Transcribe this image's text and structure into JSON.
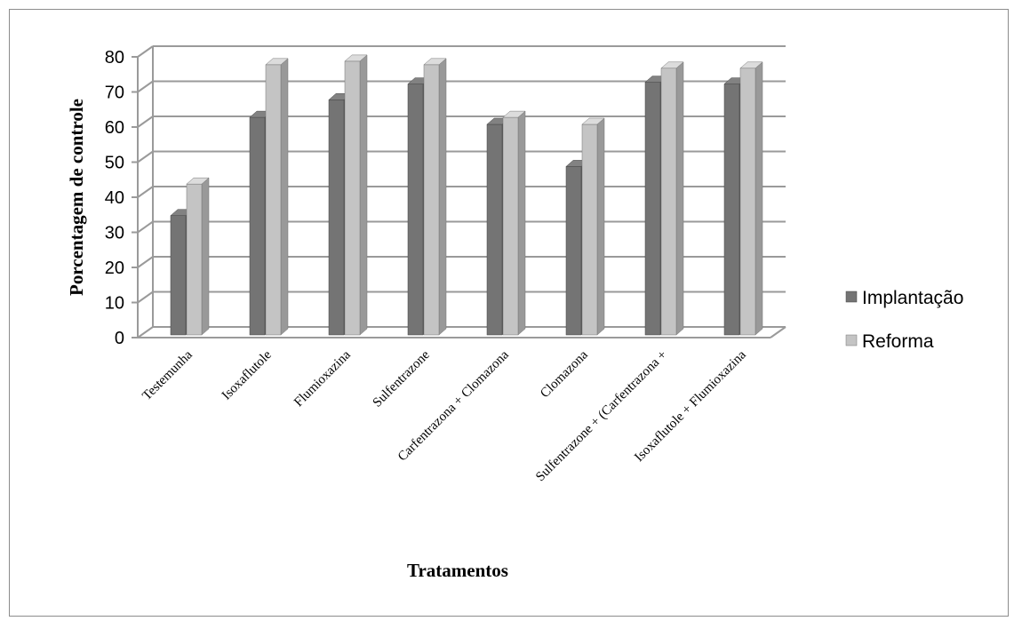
{
  "chart_data": {
    "type": "bar",
    "xlabel": "Tratamentos",
    "ylabel": "Porcentagem de controle",
    "ylim": [
      0,
      80
    ],
    "yticks": [
      0,
      10,
      20,
      30,
      40,
      50,
      60,
      70,
      80
    ],
    "grid": true,
    "legend_position": "right",
    "categories": [
      "Testemunha",
      "Isoxaflutole",
      "Flumioxazina",
      "Sulfentrazone",
      "Carfentrazona + Clomazona",
      "Clomazona",
      "Sulfentrazone + (Carfentrazona +",
      "Isoxaflutole + Flumioxazina"
    ],
    "series": [
      {
        "name": "Implantação",
        "values": [
          34,
          62,
          67,
          71.5,
          60,
          48,
          72,
          71.5
        ],
        "color": "#747474"
      },
      {
        "name": "Reforma",
        "values": [
          43,
          77,
          78,
          77,
          62,
          60,
          76,
          76
        ],
        "color": "#c4c4c4"
      }
    ]
  }
}
